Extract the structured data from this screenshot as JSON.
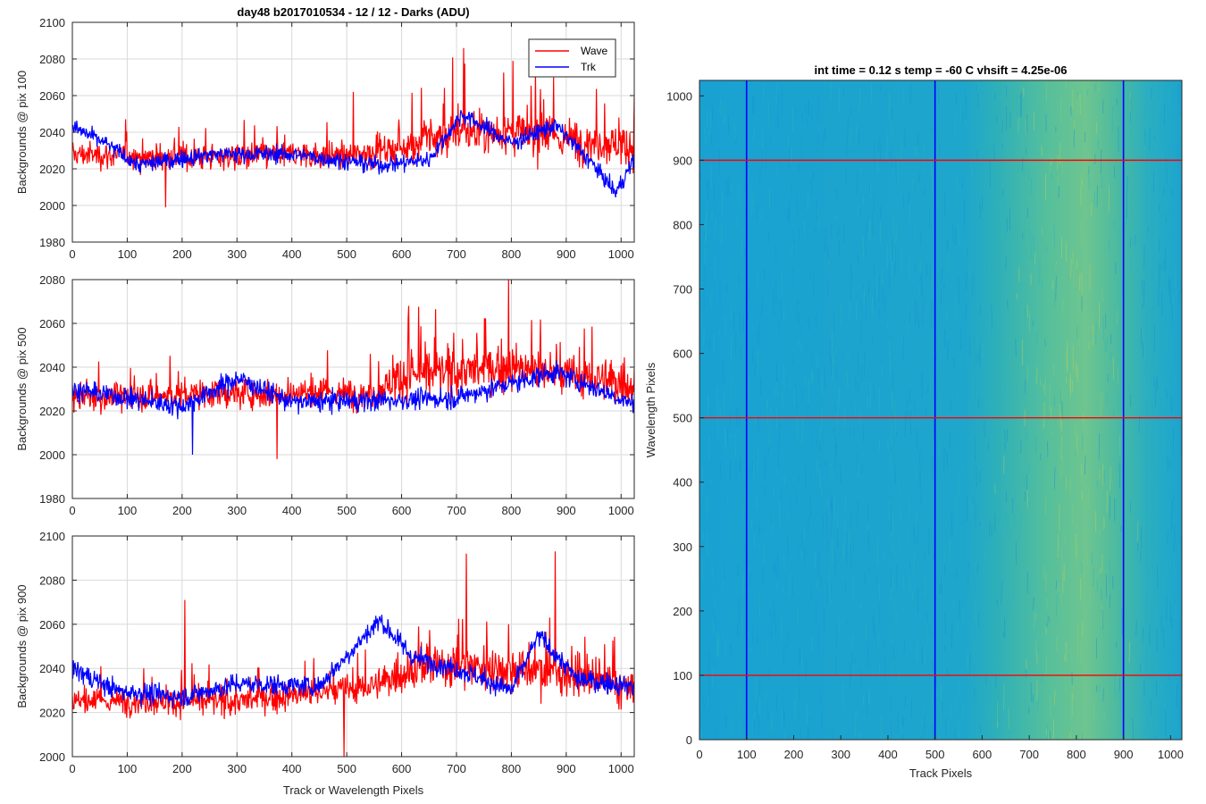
{
  "figure": {
    "colors": {
      "wave": "#ff0000",
      "trk": "#0000ff",
      "grid": "#d9d9d9",
      "axis": "#262626"
    }
  },
  "chart_data": [
    {
      "type": "line",
      "id": "p1",
      "title": "day48 b2017010534 - 12 / 12 - Darks (ADU)",
      "xlabel": "",
      "ylabel": "Backgrounds @ pix 100",
      "xlim": [
        0,
        1024
      ],
      "ylim": [
        1980,
        2100
      ],
      "xticks": [
        0,
        100,
        200,
        300,
        400,
        500,
        600,
        700,
        800,
        900,
        1000
      ],
      "yticks": [
        1980,
        2000,
        2020,
        2040,
        2060,
        2080,
        2100
      ],
      "legend": {
        "position": "top-right",
        "entries": [
          "Wave",
          "Trk"
        ]
      },
      "series": [
        {
          "name": "Wave",
          "color": "#ff0000",
          "baseline": [
            [
              0,
              2028
            ],
            [
              200,
              2026
            ],
            [
              400,
              2028
            ],
            [
              500,
              2027
            ],
            [
              600,
              2032
            ],
            [
              700,
              2040
            ],
            [
              800,
              2040
            ],
            [
              900,
              2036
            ],
            [
              1024,
              2033
            ]
          ],
          "noise": [
            [
              0,
              9
            ],
            [
              550,
              10
            ],
            [
              650,
              16
            ],
            [
              1024,
              14
            ]
          ],
          "spikes": [
            [
              713,
              2086
            ],
            [
              803,
              2079
            ],
            [
              512,
              2062
            ],
            [
              170,
              1999
            ]
          ]
        },
        {
          "name": "Trk",
          "color": "#0000ff",
          "baseline": [
            [
              0,
              2043
            ],
            [
              60,
              2034
            ],
            [
              120,
              2022
            ],
            [
              250,
              2028
            ],
            [
              400,
              2028
            ],
            [
              560,
              2022
            ],
            [
              650,
              2025
            ],
            [
              710,
              2050
            ],
            [
              800,
              2034
            ],
            [
              880,
              2044
            ],
            [
              950,
              2022
            ],
            [
              990,
              2007
            ],
            [
              1024,
              2025
            ]
          ],
          "noise": [
            [
              0,
              6
            ],
            [
              1024,
              6
            ]
          ],
          "spikes": []
        }
      ]
    },
    {
      "type": "line",
      "id": "p2",
      "title": "",
      "xlabel": "",
      "ylabel": "Backgrounds @ pix 500",
      "xlim": [
        0,
        1024
      ],
      "ylim": [
        1980,
        2080
      ],
      "xticks": [
        0,
        100,
        200,
        300,
        400,
        500,
        600,
        700,
        800,
        900,
        1000
      ],
      "yticks": [
        1980,
        2000,
        2020,
        2040,
        2060,
        2080
      ],
      "series": [
        {
          "name": "Wave",
          "color": "#ff0000",
          "baseline": [
            [
              0,
              2026
            ],
            [
              300,
              2028
            ],
            [
              550,
              2028
            ],
            [
              600,
              2036
            ],
            [
              700,
              2038
            ],
            [
              800,
              2040
            ],
            [
              1024,
              2032
            ]
          ],
          "noise": [
            [
              0,
              8
            ],
            [
              560,
              9
            ],
            [
              600,
              14
            ],
            [
              1024,
              12
            ]
          ],
          "spikes": [
            [
              795,
              2080
            ],
            [
              613,
              2068
            ],
            [
              373,
              1998
            ]
          ]
        },
        {
          "name": "Trk",
          "color": "#0000ff",
          "baseline": [
            [
              0,
              2030
            ],
            [
              200,
              2022
            ],
            [
              300,
              2035
            ],
            [
              400,
              2024
            ],
            [
              600,
              2025
            ],
            [
              700,
              2026
            ],
            [
              880,
              2038
            ],
            [
              1024,
              2023
            ]
          ],
          "noise": [
            [
              0,
              6
            ],
            [
              1024,
              6
            ]
          ],
          "spikes": [
            [
              219,
              2000
            ]
          ]
        }
      ]
    },
    {
      "type": "line",
      "id": "p3",
      "title": "",
      "xlabel": "Track or Wavelength Pixels",
      "ylabel": "Backgrounds @ pix 900",
      "xlim": [
        0,
        1024
      ],
      "ylim": [
        2000,
        2100
      ],
      "xticks": [
        0,
        100,
        200,
        300,
        400,
        500,
        600,
        700,
        800,
        900,
        1000
      ],
      "yticks": [
        2000,
        2020,
        2040,
        2060,
        2080,
        2100
      ],
      "series": [
        {
          "name": "Wave",
          "color": "#ff0000",
          "baseline": [
            [
              0,
              2025
            ],
            [
              300,
              2025
            ],
            [
              550,
              2032
            ],
            [
              620,
              2040
            ],
            [
              700,
              2042
            ],
            [
              800,
              2040
            ],
            [
              900,
              2038
            ],
            [
              1024,
              2030
            ]
          ],
          "noise": [
            [
              0,
              7
            ],
            [
              580,
              9
            ],
            [
              620,
              14
            ],
            [
              1024,
              12
            ]
          ],
          "spikes": [
            [
              718,
              2092
            ],
            [
              880,
              2093
            ],
            [
              205,
              2071
            ],
            [
              495,
              2000
            ]
          ]
        },
        {
          "name": "Trk",
          "color": "#0000ff",
          "baseline": [
            [
              0,
              2040
            ],
            [
              80,
              2030
            ],
            [
              200,
              2027
            ],
            [
              300,
              2033
            ],
            [
              450,
              2032
            ],
            [
              560,
              2062
            ],
            [
              620,
              2045
            ],
            [
              700,
              2040
            ],
            [
              800,
              2030
            ],
            [
              850,
              2055
            ],
            [
              920,
              2035
            ],
            [
              1024,
              2032
            ]
          ],
          "noise": [
            [
              0,
              6
            ],
            [
              1024,
              6
            ]
          ],
          "spikes": []
        }
      ]
    },
    {
      "type": "heatmap",
      "id": "img",
      "title": "int time = 0.12 s    temp = -60 C    vhsift = 4.25e-06",
      "xlabel": "Track Pixels",
      "ylabel": "Wavelength Pixels",
      "xlim": [
        0,
        1024
      ],
      "ylim": [
        0,
        1024
      ],
      "xticks": [
        0,
        100,
        200,
        300,
        400,
        500,
        600,
        700,
        800,
        900,
        1000
      ],
      "yticks": [
        0,
        100,
        200,
        300,
        400,
        500,
        600,
        700,
        800,
        900,
        1000
      ],
      "colormap": "parula",
      "vertical_lines": {
        "color": "#0000ff",
        "x": [
          100,
          500,
          900
        ]
      },
      "horizontal_lines": {
        "color": "#ff0000",
        "y": [
          100,
          500,
          900
        ]
      }
    }
  ]
}
